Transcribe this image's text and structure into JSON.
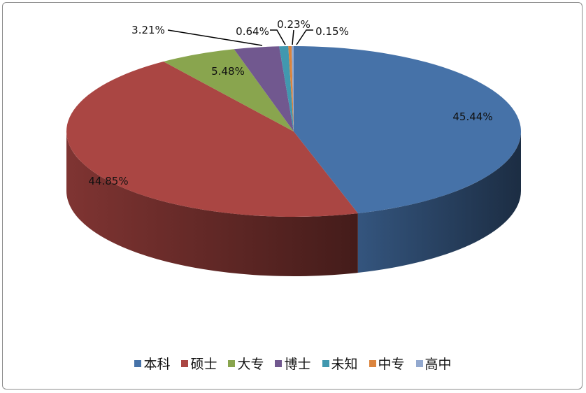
{
  "chart_data": {
    "type": "pie",
    "style": "3d",
    "start": "top, clockwise",
    "legend_position": "bottom",
    "categories": [
      "本科",
      "硕士",
      "大专",
      "博士",
      "未知",
      "中专",
      "高中"
    ],
    "values": [
      45.44,
      44.85,
      5.48,
      3.21,
      0.64,
      0.23,
      0.15
    ],
    "labels": [
      "45.44%",
      "44.85%",
      "5.48%",
      "3.21%",
      "0.64%",
      "0.23%",
      "0.15%"
    ],
    "colors": [
      "#4672a8",
      "#aa4643",
      "#89a54e",
      "#71588f",
      "#4198af",
      "#db843d",
      "#93a9cf"
    ]
  }
}
